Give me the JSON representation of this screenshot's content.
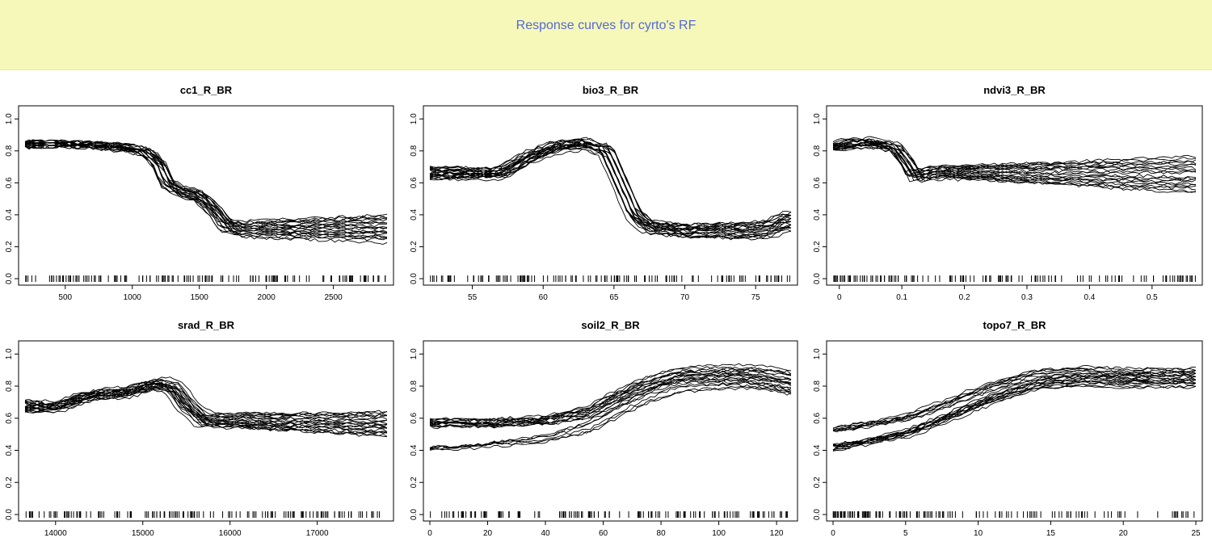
{
  "page": {
    "title": "Response curves for cyrto's RF"
  },
  "style": {
    "banner_bg": "#f6f8b9",
    "title_color": "#5468d8",
    "line_color": "#000000"
  },
  "chart_data": [
    {
      "type": "line",
      "title": "cc1_R_BR",
      "xlim": [
        200,
        2900
      ],
      "ylim": [
        0.0,
        1.0
      ],
      "xticks": [
        500,
        1000,
        1500,
        2000,
        2500
      ],
      "yticks": [
        0.0,
        0.2,
        0.4,
        0.6,
        0.8,
        1.0
      ],
      "n_curves": 20,
      "curve_template": {
        "x": [
          200,
          500,
          900,
          1100,
          1200,
          1260,
          1350,
          1500,
          1620,
          1700,
          1800,
          2850
        ],
        "y": [
          0.85,
          0.85,
          0.83,
          0.8,
          0.72,
          0.6,
          0.55,
          0.52,
          0.42,
          0.33,
          0.31,
          0.31
        ]
      },
      "y_spread": {
        "start": 0.06,
        "end": 0.09
      }
    },
    {
      "type": "line",
      "title": "bio3_R_BR",
      "xlim": [
        52,
        77.5
      ],
      "ylim": [
        0.0,
        1.0
      ],
      "xticks": [
        55,
        60,
        65,
        70,
        75
      ],
      "yticks": [
        0.0,
        0.2,
        0.4,
        0.6,
        0.8,
        1.0
      ],
      "n_curves": 20,
      "curve_template": {
        "x": [
          52,
          57,
          59,
          61,
          63,
          64.5,
          65.5,
          66.5,
          67.5,
          70,
          74,
          76,
          77
        ],
        "y": [
          0.65,
          0.65,
          0.75,
          0.82,
          0.84,
          0.8,
          0.6,
          0.4,
          0.32,
          0.3,
          0.3,
          0.31,
          0.36
        ]
      },
      "y_spread": {
        "start": 0.1,
        "end": 0.06
      }
    },
    {
      "type": "line",
      "title": "ndvi3_R_BR",
      "xlim": [
        -0.01,
        0.57
      ],
      "ylim": [
        0.0,
        1.0
      ],
      "xticks": [
        0.0,
        0.1,
        0.2,
        0.3,
        0.4,
        0.5
      ],
      "yticks": [
        0.0,
        0.2,
        0.4,
        0.6,
        0.8,
        1.0
      ],
      "n_curves": 20,
      "curve_template": {
        "x": [
          -0.01,
          0.02,
          0.05,
          0.09,
          0.11,
          0.12,
          0.14,
          0.16,
          0.57
        ],
        "y": [
          0.8,
          0.82,
          0.83,
          0.8,
          0.7,
          0.62,
          0.64,
          0.65,
          0.65
        ]
      },
      "y_spread": {
        "start": 0.07,
        "end": 0.12
      }
    },
    {
      "type": "line",
      "title": "srad_R_BR",
      "xlim": [
        13650,
        17800
      ],
      "ylim": [
        0.0,
        1.0
      ],
      "xticks": [
        14000,
        15000,
        16000,
        17000
      ],
      "yticks": [
        0.0,
        0.2,
        0.4,
        0.6,
        0.8,
        1.0
      ],
      "n_curves": 20,
      "curve_template": {
        "x": [
          13650,
          14000,
          14400,
          14800,
          15150,
          15350,
          15500,
          15700,
          16000,
          17800
        ],
        "y": [
          0.62,
          0.62,
          0.7,
          0.72,
          0.78,
          0.76,
          0.65,
          0.56,
          0.56,
          0.56
        ]
      },
      "y_spread": {
        "start": 0.09,
        "end": 0.08
      }
    },
    {
      "type": "line",
      "title": "soil2_R_BR",
      "xlim": [
        0,
        125
      ],
      "ylim": [
        0.0,
        1.0
      ],
      "xticks": [
        0,
        20,
        40,
        60,
        80,
        100,
        120
      ],
      "yticks": [
        0.0,
        0.2,
        0.4,
        0.6,
        0.8,
        1.0
      ],
      "n_curves": 20,
      "curve_template": {
        "x": [
          0,
          20,
          40,
          55,
          65,
          75,
          85,
          100,
          110,
          120,
          125
        ],
        "y": [
          0.5,
          0.51,
          0.54,
          0.6,
          0.7,
          0.78,
          0.84,
          0.86,
          0.86,
          0.84,
          0.82
        ]
      },
      "y_spread": {
        "start": 0.1,
        "end": 0.08
      }
    },
    {
      "type": "line",
      "title": "topo7_R_BR",
      "xlim": [
        0,
        25
      ],
      "ylim": [
        0.0,
        1.0
      ],
      "xticks": [
        0,
        5,
        10,
        15,
        20,
        25
      ],
      "yticks": [
        0.0,
        0.2,
        0.4,
        0.6,
        0.8,
        1.0
      ],
      "n_curves": 20,
      "curve_template": {
        "x": [
          0,
          2,
          5,
          8,
          11,
          14,
          17,
          20,
          25
        ],
        "y": [
          0.47,
          0.5,
          0.55,
          0.65,
          0.76,
          0.84,
          0.86,
          0.85,
          0.85
        ]
      },
      "y_spread": {
        "start": 0.07,
        "end": 0.06
      }
    }
  ]
}
